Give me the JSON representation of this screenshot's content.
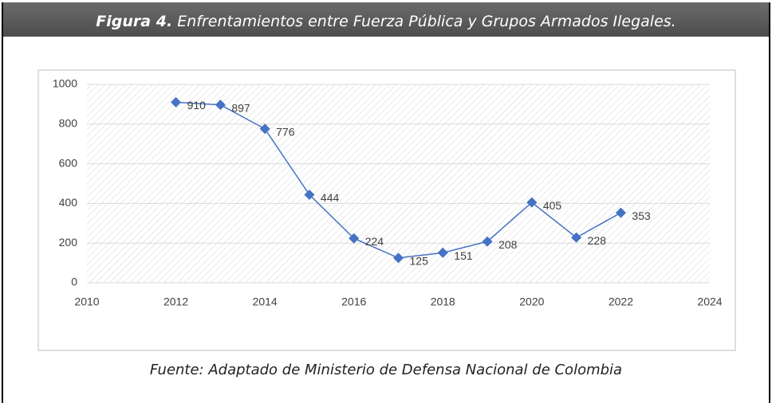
{
  "chart_data": {
    "type": "line",
    "title_label": "Figura 4.",
    "title": "Enfrentamientos entre Fuerza Pública y Grupos Armados Ilegales.",
    "source": "Fuente: Adaptado de Ministerio de Defensa Nacional de Colombia",
    "series": [
      {
        "name": "Enfrentamientos",
        "color": "#4472c4",
        "x": [
          2012,
          2013,
          2014,
          2015,
          2016,
          2017,
          2018,
          2019,
          2020,
          2021,
          2022
        ],
        "values": [
          910,
          897,
          776,
          444,
          224,
          125,
          151,
          208,
          405,
          228,
          353
        ]
      }
    ],
    "xlim": [
      2010,
      2024
    ],
    "xticks": [
      2010,
      2012,
      2014,
      2016,
      2018,
      2020,
      2022,
      2024
    ],
    "ylim": [
      0,
      1000
    ],
    "yticks": [
      0,
      200,
      400,
      600,
      800,
      1000
    ],
    "grid": true,
    "marker": "diamond"
  }
}
